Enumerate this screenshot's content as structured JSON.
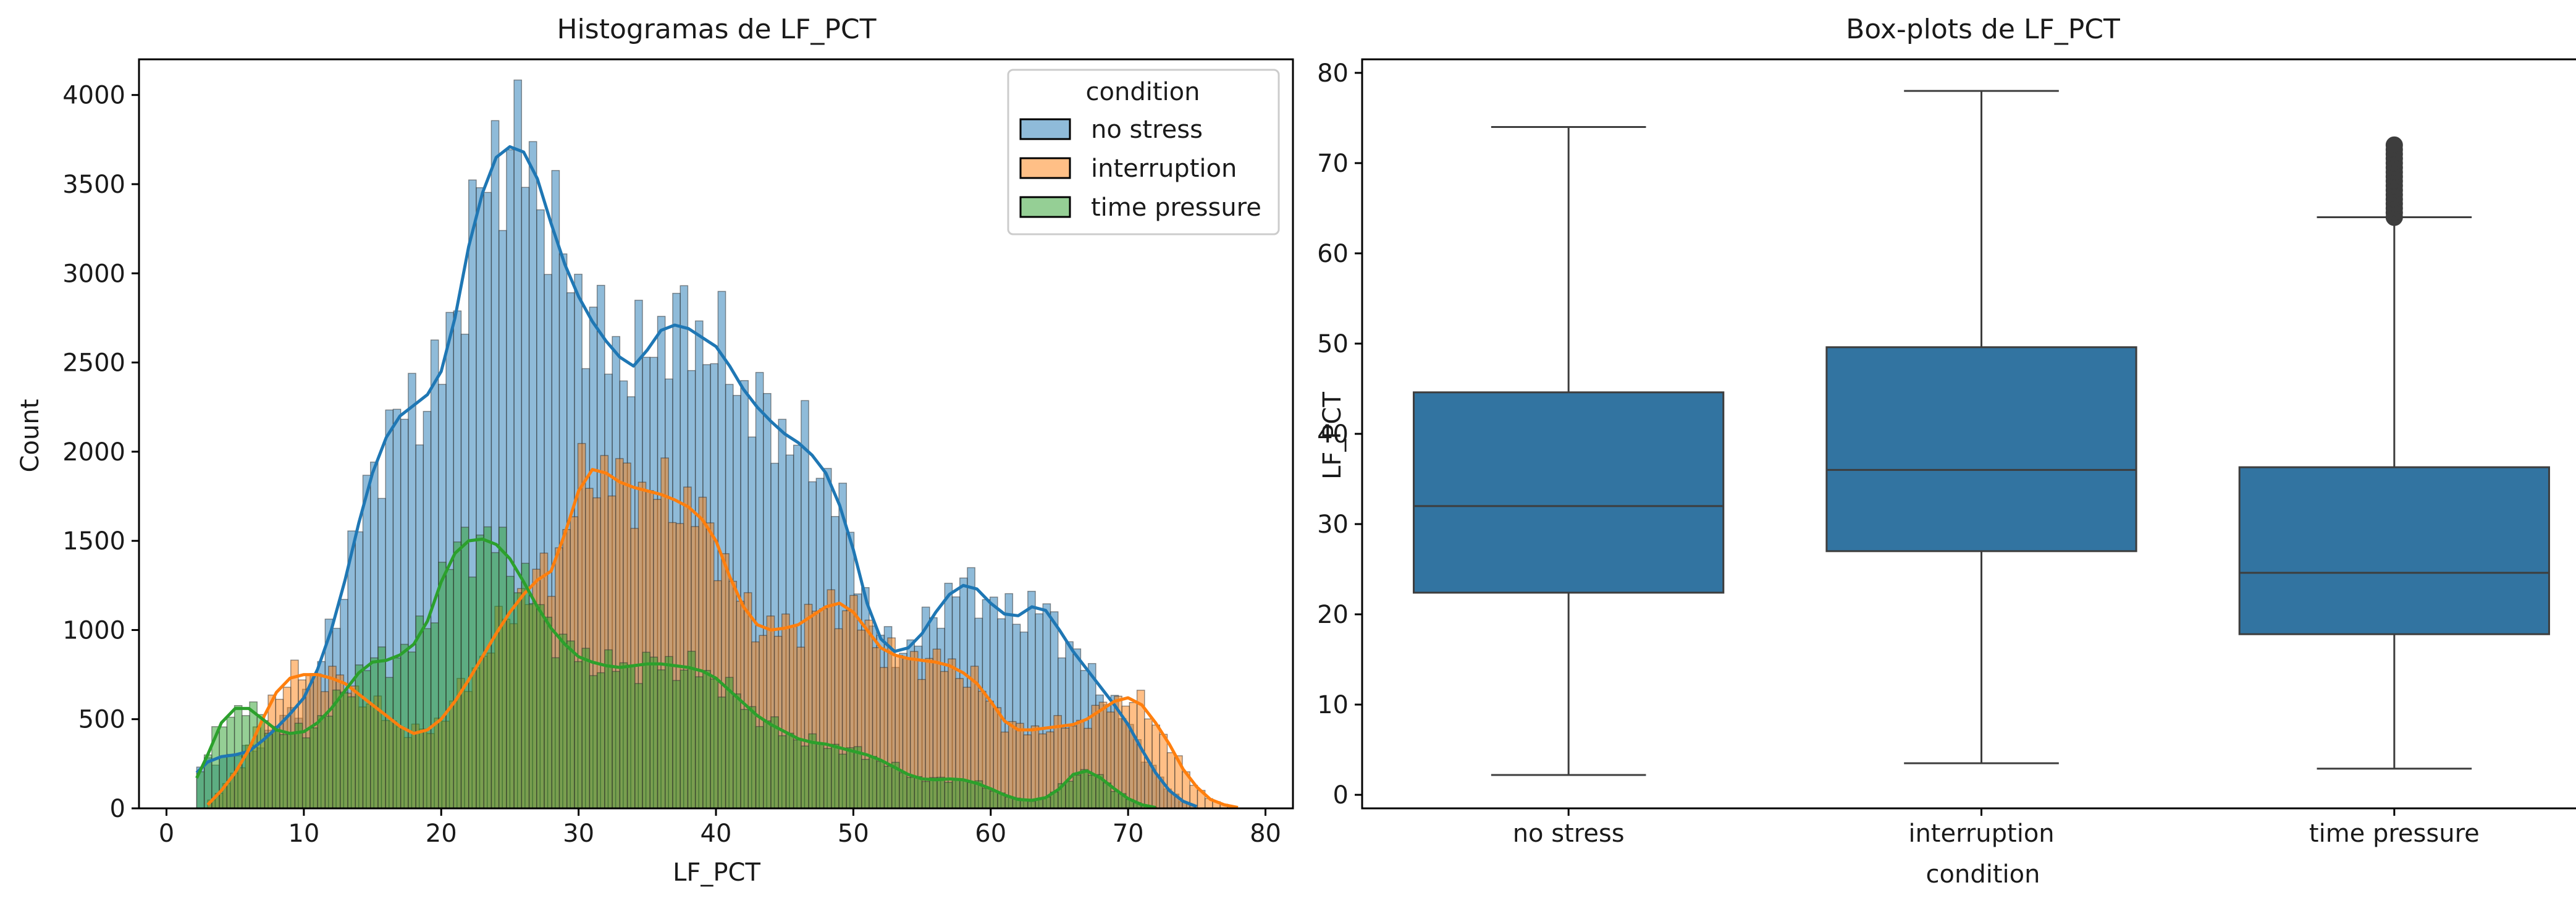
{
  "figure": {
    "style": {
      "ink": "#1a1a1a",
      "no_stress_color": "#1f77b4",
      "interruption_color": "#ff7f0e",
      "time_pressure_color": "#2ca02c",
      "box_color": "#3274a1"
    }
  },
  "chart_data": [
    {
      "type": "histogram",
      "title": "Histogramas de LF_PCT",
      "xlabel": "LF_PCT",
      "ylabel": "Count",
      "xlim": [
        -2,
        82
      ],
      "ylim": [
        0,
        4200
      ],
      "xticks": [
        0,
        10,
        20,
        30,
        40,
        50,
        60,
        70,
        80
      ],
      "yticks": [
        0,
        500,
        1000,
        1500,
        2000,
        2500,
        3000,
        3500,
        4000
      ],
      "legend": {
        "title": "condition",
        "position": "top-right",
        "labels": [
          "no stress",
          "interruption",
          "time pressure"
        ]
      },
      "grid": false,
      "kde": true,
      "series": [
        {
          "name": "no stress",
          "color": "#1f77b4",
          "kde": [
            [
              2.2,
              200
            ],
            [
              3,
              260
            ],
            [
              4,
              290
            ],
            [
              5,
              300
            ],
            [
              6,
              320
            ],
            [
              7,
              380
            ],
            [
              8,
              450
            ],
            [
              9,
              530
            ],
            [
              10,
              620
            ],
            [
              11,
              780
            ],
            [
              12,
              1000
            ],
            [
              13,
              1280
            ],
            [
              14,
              1600
            ],
            [
              15,
              1880
            ],
            [
              16,
              2080
            ],
            [
              17,
              2200
            ],
            [
              18,
              2260
            ],
            [
              19,
              2320
            ],
            [
              20,
              2450
            ],
            [
              21,
              2750
            ],
            [
              22,
              3150
            ],
            [
              23,
              3450
            ],
            [
              24,
              3650
            ],
            [
              25,
              3710
            ],
            [
              26,
              3680
            ],
            [
              27,
              3530
            ],
            [
              28,
              3280
            ],
            [
              29,
              3050
            ],
            [
              30,
              2870
            ],
            [
              31,
              2730
            ],
            [
              32,
              2620
            ],
            [
              33,
              2530
            ],
            [
              34,
              2480
            ],
            [
              35,
              2570
            ],
            [
              36,
              2680
            ],
            [
              37,
              2710
            ],
            [
              38,
              2690
            ],
            [
              39,
              2640
            ],
            [
              40,
              2590
            ],
            [
              41,
              2480
            ],
            [
              42,
              2350
            ],
            [
              43,
              2250
            ],
            [
              44,
              2170
            ],
            [
              45,
              2100
            ],
            [
              46,
              2050
            ],
            [
              47,
              1980
            ],
            [
              48,
              1880
            ],
            [
              49,
              1700
            ],
            [
              50,
              1450
            ],
            [
              51,
              1150
            ],
            [
              52,
              950
            ],
            [
              53,
              880
            ],
            [
              54,
              900
            ],
            [
              55,
              980
            ],
            [
              56,
              1100
            ],
            [
              57,
              1200
            ],
            [
              58,
              1250
            ],
            [
              59,
              1230
            ],
            [
              60,
              1150
            ],
            [
              61,
              1090
            ],
            [
              62,
              1080
            ],
            [
              63,
              1130
            ],
            [
              64,
              1110
            ],
            [
              65,
              1000
            ],
            [
              66,
              880
            ],
            [
              67,
              780
            ],
            [
              68,
              680
            ],
            [
              69,
              580
            ],
            [
              70,
              470
            ],
            [
              71,
              330
            ],
            [
              72,
              200
            ],
            [
              73,
              100
            ],
            [
              74,
              40
            ],
            [
              75,
              10
            ]
          ]
        },
        {
          "name": "interruption",
          "color": "#ff7f0e",
          "kde": [
            [
              3,
              20
            ],
            [
              4,
              100
            ],
            [
              5,
              200
            ],
            [
              6,
              330
            ],
            [
              7,
              500
            ],
            [
              8,
              650
            ],
            [
              9,
              730
            ],
            [
              10,
              750
            ],
            [
              11,
              750
            ],
            [
              12,
              730
            ],
            [
              13,
              700
            ],
            [
              14,
              640
            ],
            [
              15,
              580
            ],
            [
              16,
              520
            ],
            [
              17,
              460
            ],
            [
              18,
              420
            ],
            [
              19,
              440
            ],
            [
              20,
              500
            ],
            [
              21,
              600
            ],
            [
              22,
              720
            ],
            [
              23,
              850
            ],
            [
              24,
              980
            ],
            [
              25,
              1100
            ],
            [
              26,
              1200
            ],
            [
              27,
              1280
            ],
            [
              28,
              1330
            ],
            [
              29,
              1540
            ],
            [
              30,
              1780
            ],
            [
              31,
              1900
            ],
            [
              32,
              1880
            ],
            [
              33,
              1830
            ],
            [
              34,
              1800
            ],
            [
              35,
              1780
            ],
            [
              36,
              1760
            ],
            [
              37,
              1730
            ],
            [
              38,
              1690
            ],
            [
              39,
              1620
            ],
            [
              40,
              1500
            ],
            [
              41,
              1300
            ],
            [
              42,
              1130
            ],
            [
              43,
              1030
            ],
            [
              44,
              1000
            ],
            [
              45,
              1010
            ],
            [
              46,
              1030
            ],
            [
              47,
              1080
            ],
            [
              48,
              1130
            ],
            [
              49,
              1150
            ],
            [
              50,
              1100
            ],
            [
              51,
              1000
            ],
            [
              52,
              900
            ],
            [
              53,
              860
            ],
            [
              54,
              840
            ],
            [
              55,
              830
            ],
            [
              56,
              820
            ],
            [
              57,
              800
            ],
            [
              58,
              760
            ],
            [
              59,
              700
            ],
            [
              60,
              600
            ],
            [
              61,
              490
            ],
            [
              62,
              440
            ],
            [
              63,
              440
            ],
            [
              64,
              450
            ],
            [
              65,
              460
            ],
            [
              66,
              470
            ],
            [
              67,
              500
            ],
            [
              68,
              550
            ],
            [
              69,
              600
            ],
            [
              70,
              620
            ],
            [
              71,
              580
            ],
            [
              72,
              480
            ],
            [
              73,
              360
            ],
            [
              74,
              220
            ],
            [
              75,
              120
            ],
            [
              76,
              50
            ],
            [
              77,
              20
            ],
            [
              78,
              5
            ]
          ]
        },
        {
          "name": "time pressure",
          "color": "#2ca02c",
          "kde": [
            [
              2.2,
              170
            ],
            [
              3,
              300
            ],
            [
              4,
              480
            ],
            [
              5,
              560
            ],
            [
              6,
              560
            ],
            [
              7,
              500
            ],
            [
              8,
              440
            ],
            [
              9,
              420
            ],
            [
              10,
              430
            ],
            [
              11,
              480
            ],
            [
              12,
              560
            ],
            [
              13,
              660
            ],
            [
              14,
              760
            ],
            [
              15,
              820
            ],
            [
              16,
              830
            ],
            [
              17,
              860
            ],
            [
              18,
              920
            ],
            [
              19,
              1050
            ],
            [
              20,
              1270
            ],
            [
              21,
              1430
            ],
            [
              22,
              1500
            ],
            [
              23,
              1510
            ],
            [
              24,
              1480
            ],
            [
              25,
              1400
            ],
            [
              26,
              1270
            ],
            [
              27,
              1130
            ],
            [
              28,
              1010
            ],
            [
              29,
              920
            ],
            [
              30,
              850
            ],
            [
              31,
              820
            ],
            [
              32,
              800
            ],
            [
              33,
              790
            ],
            [
              34,
              800
            ],
            [
              35,
              810
            ],
            [
              36,
              810
            ],
            [
              37,
              800
            ],
            [
              38,
              790
            ],
            [
              39,
              770
            ],
            [
              40,
              730
            ],
            [
              41,
              660
            ],
            [
              42,
              590
            ],
            [
              43,
              520
            ],
            [
              44,
              470
            ],
            [
              45,
              430
            ],
            [
              46,
              390
            ],
            [
              47,
              370
            ],
            [
              48,
              360
            ],
            [
              49,
              340
            ],
            [
              50,
              320
            ],
            [
              51,
              300
            ],
            [
              52,
              270
            ],
            [
              53,
              230
            ],
            [
              54,
              190
            ],
            [
              55,
              165
            ],
            [
              56,
              160
            ],
            [
              57,
              165
            ],
            [
              58,
              160
            ],
            [
              59,
              140
            ],
            [
              60,
              110
            ],
            [
              61,
              75
            ],
            [
              62,
              50
            ],
            [
              63,
              45
            ],
            [
              64,
              60
            ],
            [
              65,
              110
            ],
            [
              66,
              190
            ],
            [
              67,
              210
            ],
            [
              68,
              170
            ],
            [
              69,
              110
            ],
            [
              70,
              55
            ],
            [
              71,
              20
            ],
            [
              72,
              5
            ]
          ]
        }
      ]
    },
    {
      "type": "box",
      "title": "Box-plots de LF_PCT",
      "xlabel": "condition",
      "ylabel": "LF_PCT",
      "ylim": [
        -1.5,
        81.5
      ],
      "yticks": [
        0,
        10,
        20,
        30,
        40,
        50,
        60,
        70,
        80
      ],
      "categories": [
        "no stress",
        "interruption",
        "time pressure"
      ],
      "grid": false,
      "boxes": [
        {
          "category": "no stress",
          "whislo": 2.2,
          "q1": 22.4,
          "median": 32.0,
          "q3": 44.6,
          "whishi": 74.0,
          "outliers": []
        },
        {
          "category": "interruption",
          "whislo": 3.5,
          "q1": 27.0,
          "median": 36.0,
          "q3": 49.6,
          "whishi": 78.0,
          "outliers": []
        },
        {
          "category": "time pressure",
          "whislo": 2.9,
          "q1": 17.8,
          "median": 24.6,
          "q3": 36.3,
          "whishi": 64.0,
          "outliers": [
            64.0,
            64.5,
            65.0,
            65.5,
            66.0,
            66.5,
            67.0,
            67.5,
            68.0,
            68.5,
            69.0,
            69.5,
            70.0,
            70.5,
            71.0,
            71.5,
            72.0
          ]
        }
      ]
    }
  ]
}
